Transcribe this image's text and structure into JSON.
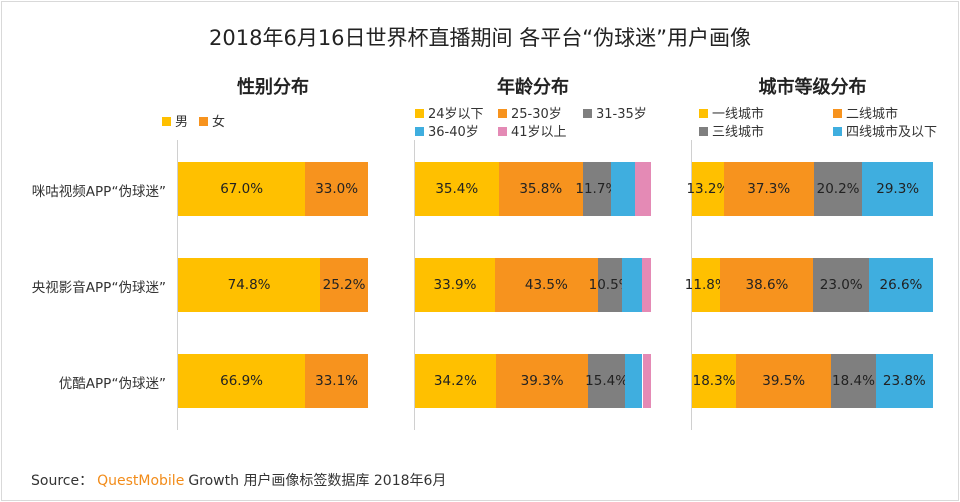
{
  "title": "2018年6月16日世界杯直播期间 各平台“伪球迷”用户画像",
  "rows": [
    "咪咕视频APP“伪球迷”",
    "央视影音APP“伪球迷”",
    "优酷APP“伪球迷”"
  ],
  "chart_data": [
    {
      "type": "bar",
      "stacked": true,
      "orientation": "horizontal",
      "title": "性别分布",
      "categories": [
        "咪咕视频APP“伪球迷”",
        "央视影音APP“伪球迷”",
        "优酷APP“伪球迷”"
      ],
      "series": [
        {
          "name": "男",
          "color": "#FFC000",
          "values": [
            67.0,
            74.8,
            66.9
          ],
          "labels": [
            "67.0%",
            "74.8%",
            "66.9%"
          ]
        },
        {
          "name": "女",
          "color": "#F7931E",
          "values": [
            33.0,
            25.2,
            33.1
          ],
          "labels": [
            "33.0%",
            "25.2%",
            "33.1%"
          ]
        }
      ],
      "xlim": [
        0,
        100
      ]
    },
    {
      "type": "bar",
      "stacked": true,
      "orientation": "horizontal",
      "title": "年龄分布",
      "categories": [
        "咪咕视频APP“伪球迷”",
        "央视影音APP“伪球迷”",
        "优酷APP“伪球迷”"
      ],
      "series": [
        {
          "name": "24岁以下",
          "color": "#FFC000",
          "values": [
            35.4,
            33.9,
            34.2
          ],
          "labels": [
            "35.4%",
            "33.9%",
            "34.2%"
          ]
        },
        {
          "name": "25-30岁",
          "color": "#F7931E",
          "values": [
            35.8,
            43.5,
            39.3
          ],
          "labels": [
            "35.8%",
            "43.5%",
            "39.3%"
          ]
        },
        {
          "name": "31-35岁",
          "color": "#7F7F7F",
          "values": [
            11.7,
            10.5,
            15.4
          ],
          "labels": [
            "11.7%",
            "10.5%",
            "15.4%"
          ]
        },
        {
          "name": "36-40岁",
          "color": "#3FAEDF",
          "values": [
            10.2,
            8.1,
            7.5
          ],
          "labels": [
            "",
            "",
            ""
          ]
        },
        {
          "name": "41岁以上",
          "color": "#E48AB5",
          "values": [
            6.9,
            4.0,
            3.6
          ],
          "labels": [
            "",
            "",
            ""
          ]
        }
      ],
      "xlim": [
        0,
        100
      ]
    },
    {
      "type": "bar",
      "stacked": true,
      "orientation": "horizontal",
      "title": "城市等级分布",
      "categories": [
        "咪咕视频APP“伪球迷”",
        "央视影音APP“伪球迷”",
        "优酷APP“伪球迷”"
      ],
      "series": [
        {
          "name": "一线城市",
          "color": "#FFC000",
          "values": [
            13.2,
            11.8,
            18.3
          ],
          "labels": [
            "13.2%",
            "11.8%",
            "18.3%"
          ]
        },
        {
          "name": "二线城市",
          "color": "#F7931E",
          "values": [
            37.3,
            38.6,
            39.5
          ],
          "labels": [
            "37.3%",
            "38.6%",
            "39.5%"
          ]
        },
        {
          "name": "三线城市",
          "color": "#7F7F7F",
          "values": [
            20.2,
            23.0,
            18.4
          ],
          "labels": [
            "20.2%",
            "23.0%",
            "18.4%"
          ]
        },
        {
          "name": "四线城市及以下",
          "color": "#3FAEDF",
          "values": [
            29.3,
            26.6,
            23.8
          ],
          "labels": [
            "29.3%",
            "26.6%",
            "23.8%"
          ]
        }
      ],
      "xlim": [
        0,
        100
      ]
    }
  ],
  "source": {
    "prefix": "Source：",
    "brand": "QuestMobile",
    "text": "Growth 用户画像标签数据库 2018年6月"
  }
}
